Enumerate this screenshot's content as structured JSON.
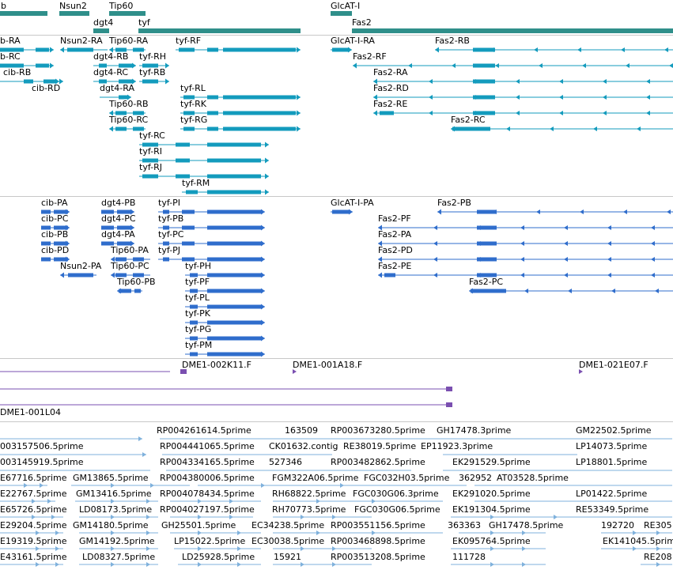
{
  "colors": {
    "gene": "#2f8f8a",
    "transcript": "#139bbd",
    "mrna": "#2f6dcc",
    "contig": "#7a4fb0",
    "est": "#7fb1dc",
    "divider": "#c8c8c8"
  },
  "tracks": {
    "genes": [
      {
        "label": "b"
      },
      {
        "label": "Nsun2"
      },
      {
        "label": "Tip60"
      },
      {
        "label": "dgt4"
      },
      {
        "label": "tyf"
      },
      {
        "label": "GlcAT-I"
      },
      {
        "label": "Fas2"
      }
    ],
    "transcripts": [
      "b-RA",
      "Nsun2-RA",
      "Tip60-RA",
      "tyf-RF",
      "GlcAT-I-RA",
      "Fas2-RB",
      "b-RC",
      "dgt4-RB",
      "tyf-RH",
      "Fas2-RF",
      "cib-RB",
      "dgt4-RC",
      "tyf-RB",
      "Fas2-RA",
      "cib-RD",
      "dgt4-RA",
      "tyf-RL",
      "Fas2-RD",
      "tyf-RK",
      "Tip60-RB",
      "Fas2-RE",
      "Tip60-RC",
      "tyf-RG",
      "Fas2-RC",
      "tyf-RC",
      "tyf-RI",
      "tyf-RJ",
      "tyf-RM"
    ],
    "mrnas": [
      "cib-PA",
      "dgt4-PB",
      "tyf-PI",
      "GlcAT-I-PA",
      "Fas2-PB",
      "cib-PC",
      "dgt4-PC",
      "tyf-PB",
      "Fas2-PF",
      "cib-PB",
      "dgt4-PA",
      "tyf-PC",
      "Fas2-PA",
      "cib-PD",
      "Tip60-PA",
      "tyf-PJ",
      "Fas2-PD",
      "Nsun2-PA",
      "Tip60-PC",
      "tyf-PH",
      "Fas2-PE",
      "Tip60-PB",
      "tyf-PF",
      "Fas2-PC",
      "tyf-PL",
      "tyf-PK",
      "tyf-PG",
      "tyf-PM"
    ],
    "contigs": [
      "DME1-002K11.F",
      "DME1-001A18.F",
      "DME1-021E07.F",
      "DME1-001L04"
    ],
    "ests": [
      "RP004261614.5prime",
      "163509",
      "RP003673280.5prime",
      "GH17478.3prime",
      "GM22502.5prime",
      "003157506.5prime",
      "RP004441065.5prime",
      "CK01632.contig",
      "RE38019.5prime",
      "EP11923.3prime",
      "LP14073.5prime",
      "003145919.5prime",
      "RP004334165.5prime",
      "527346",
      "RP003482862.5prime",
      "EK291529.5prime",
      "LP18801.5prime",
      "E67716.5prime",
      "GM13865.5prime",
      "RP004380006.5prime",
      "FGM322A06.5prime",
      "FGC032H03.5prime",
      "362952",
      "AT03528.5prime",
      "E22767.5prime",
      "GM13416.5prime",
      "RP004078434.5prime",
      "RH68822.5prime",
      "FGC030G06.3prime",
      "EK291020.5prime",
      "LP01422.5prime",
      "E65726.5prime",
      "LD08173.5prime",
      "RP004027197.5prime",
      "RH70773.5prime",
      "FGC030G06.5prime",
      "EK191304.5prime",
      "RE53349.5prime",
      "E29204.5prime",
      "GM14180.5prime",
      "GH25501.5prime",
      "EC34238.5prime",
      "RP003551156.5prime",
      "363363",
      "GH17478.5prime",
      "192720",
      "RE305",
      "E19319.5prime",
      "GM14192.5prime",
      "LP15022.5prime",
      "EC30038.5prime",
      "RP003468898.5prime",
      "EK095764.5prime",
      "EK141045.5prime",
      "E43161.5prime",
      "LD08327.5prime",
      "LD25928.5prime",
      "15921",
      "RP003513208.5prime",
      "111728",
      "RE208"
    ]
  }
}
